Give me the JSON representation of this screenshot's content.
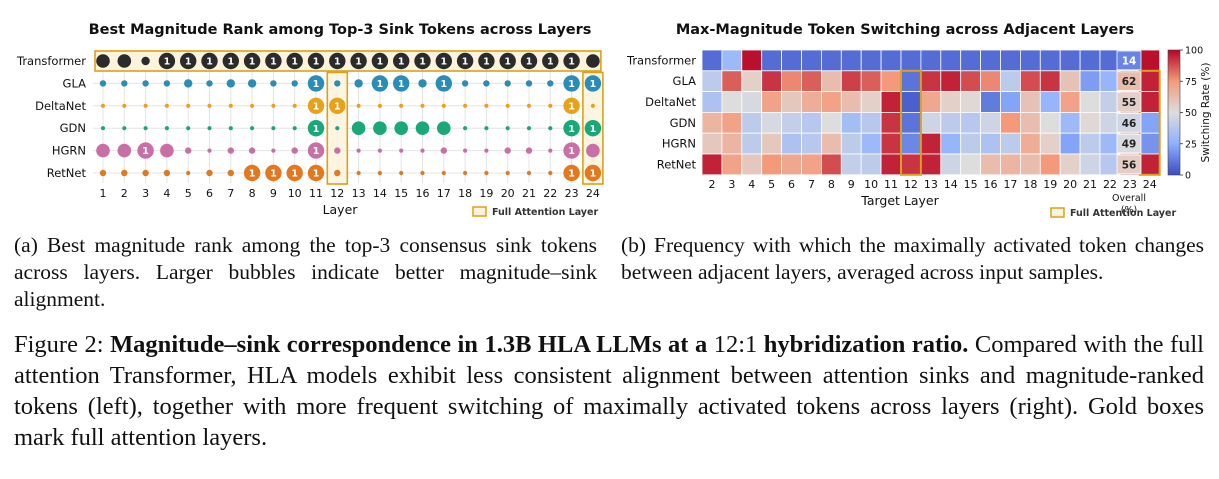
{
  "figure": {
    "label": "Figure 2:",
    "title_bold_1": "Magnitude–sink correspondence in 1.3B HLA LLMs at a",
    "ratio": "12:1",
    "title_bold_2": "hybridization ratio.",
    "body": "Compared with the full attention Transformer, HLA models exhibit less consistent alignment between attention sinks and magnitude-ranked tokens (left), together with more frequent switching of maximally activated tokens across layers (right). Gold boxes mark full attention layers."
  },
  "subfigures": {
    "a_caption": "(a) Best magnitude rank among the top-3 consensus sink tokens across layers. Larger bubbles indicate better magnitude–sink alignment.",
    "b_caption": "(b) Frequency with which the maximally activated token changes between adjacent layers, averaged across input samples."
  },
  "colors": {
    "gold": "#d9a21b",
    "gold_fill": "#fbf3dc",
    "Transformer": "#2b2b2b",
    "GLA": "#2a8db8",
    "DeltaNet": "#e8a21a",
    "GDN": "#1aa779",
    "HGRN": "#c870a6",
    "RetNet": "#e2781f"
  },
  "chart_data": [
    {
      "type": "scatter",
      "title": "Best Magnitude Rank among Top-3 Sink Tokens across Layers",
      "xlabel": "Layer",
      "ylabel": "",
      "x": [
        1,
        2,
        3,
        4,
        5,
        6,
        7,
        8,
        9,
        10,
        11,
        12,
        13,
        14,
        15,
        16,
        17,
        18,
        19,
        20,
        21,
        22,
        23,
        24
      ],
      "full_attention_layers": [
        12,
        24
      ],
      "legend": "Full Attention Layer",
      "legend_position": "bottom-right",
      "size_encoding": "larger bubble = better (lower) rank; rank-1 bubbles labeled '1'",
      "series": [
        {
          "name": "Transformer",
          "rank": [
            2,
            2,
            3,
            1,
            1,
            1,
            1,
            1,
            1,
            1,
            1,
            1,
            1,
            1,
            1,
            1,
            1,
            1,
            1,
            1,
            1,
            1,
            1,
            2
          ]
        },
        {
          "name": "GLA",
          "rank": [
            4,
            4,
            4,
            4,
            3,
            4,
            3,
            3,
            4,
            4,
            1,
            4,
            3,
            1,
            1,
            3,
            1,
            4,
            4,
            4,
            4,
            4,
            1,
            1
          ]
        },
        {
          "name": "DeltaNet",
          "rank": [
            5,
            5,
            5,
            5,
            5,
            5,
            5,
            5,
            5,
            5,
            1,
            1,
            5,
            5,
            5,
            5,
            5,
            5,
            5,
            5,
            5,
            5,
            1,
            5
          ]
        },
        {
          "name": "GDN",
          "rank": [
            5,
            5,
            5,
            5,
            5,
            5,
            5,
            5,
            5,
            5,
            1,
            5,
            2,
            2,
            2,
            2,
            2,
            5,
            5,
            5,
            5,
            5,
            1,
            1
          ]
        },
        {
          "name": "HGRN",
          "rank": [
            2,
            2,
            1,
            2,
            4,
            5,
            4,
            4,
            5,
            4,
            1,
            4,
            5,
            5,
            5,
            5,
            4,
            5,
            5,
            4,
            4,
            5,
            1,
            2
          ]
        },
        {
          "name": "RetNet",
          "rank": [
            4,
            4,
            4,
            4,
            5,
            4,
            4,
            1,
            1,
            1,
            1,
            4,
            5,
            5,
            5,
            5,
            5,
            5,
            5,
            5,
            5,
            5,
            1,
            1
          ]
        }
      ]
    },
    {
      "type": "heatmap",
      "title": "Max-Magnitude Token Switching across Adjacent Layers",
      "xlabel": "Target Layer",
      "ylabel": "",
      "x": [
        2,
        3,
        4,
        5,
        6,
        7,
        8,
        9,
        10,
        11,
        12,
        13,
        14,
        15,
        16,
        17,
        18,
        19,
        20,
        21,
        22,
        23,
        24
      ],
      "rows": [
        "Transformer",
        "GLA",
        "DeltaNet",
        "GDN",
        "HGRN",
        "RetNet"
      ],
      "full_attention_layers": [
        12,
        24
      ],
      "colorbar": {
        "label": "Switching Rate (%)",
        "ticks": [
          0,
          25,
          50,
          75,
          100
        ],
        "range": [
          0,
          100
        ],
        "colormap": "coolwarm"
      },
      "overall_label": "Overall\n(%)",
      "overall": [
        14,
        62,
        55,
        46,
        49,
        56
      ],
      "values": [
        [
          8,
          30,
          98,
          8,
          8,
          8,
          8,
          8,
          8,
          8,
          8,
          8,
          8,
          8,
          8,
          8,
          8,
          8,
          8,
          8,
          8,
          30,
          98
        ],
        [
          40,
          85,
          55,
          92,
          78,
          85,
          62,
          90,
          85,
          75,
          10,
          92,
          95,
          88,
          78,
          40,
          88,
          92,
          60,
          20,
          28,
          95,
          95
        ],
        [
          35,
          50,
          48,
          72,
          58,
          68,
          72,
          62,
          55,
          95,
          5,
          70,
          55,
          52,
          12,
          22,
          60,
          28,
          72,
          50,
          42,
          92,
          95
        ],
        [
          65,
          72,
          40,
          48,
          42,
          38,
          50,
          32,
          38,
          92,
          10,
          45,
          40,
          38,
          45,
          75,
          62,
          50,
          30,
          52,
          45,
          95,
          22
        ],
        [
          58,
          65,
          40,
          58,
          35,
          38,
          62,
          40,
          30,
          92,
          15,
          95,
          28,
          40,
          35,
          40,
          68,
          55,
          22,
          40,
          30,
          92,
          18
        ],
        [
          95,
          72,
          58,
          75,
          70,
          72,
          88,
          42,
          40,
          95,
          92,
          95,
          45,
          50,
          62,
          65,
          62,
          75,
          55,
          45,
          38,
          95,
          95
        ]
      ]
    }
  ]
}
